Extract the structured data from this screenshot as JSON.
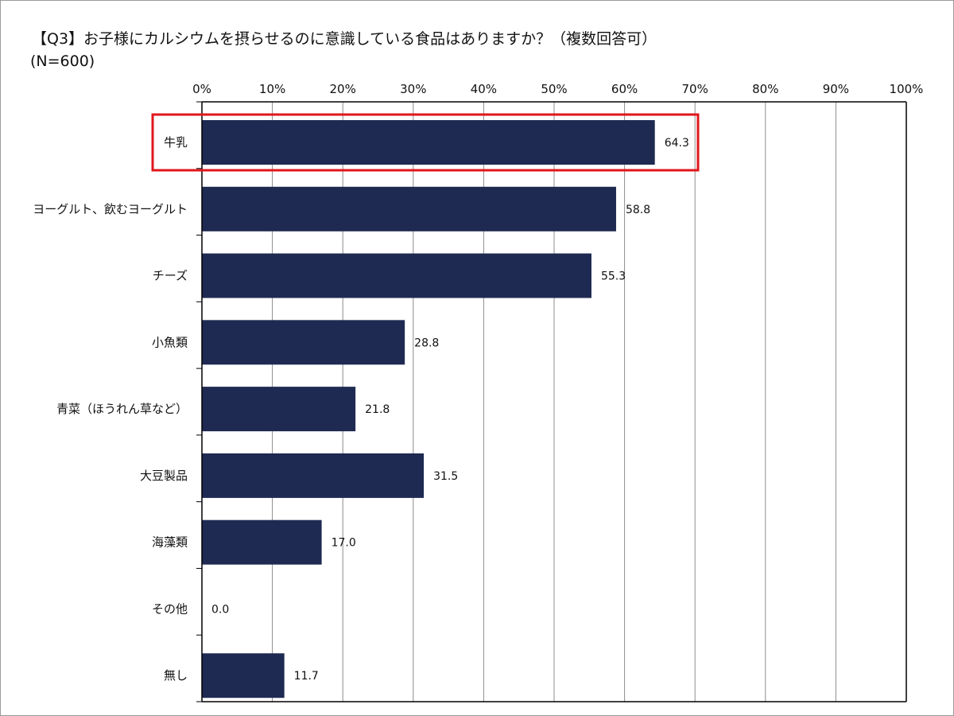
{
  "chart_data": {
    "type": "bar",
    "orientation": "horizontal",
    "title": "【Q3】お子様にカルシウムを摂らせるのに意識している食品はありますか？（複数回答可）",
    "subtitle": "(N=600)",
    "categories": [
      "牛乳",
      "ヨーグルト、飲むヨーグルト",
      "チーズ",
      "小魚類",
      "青菜（ほうれん草など）",
      "大豆製品",
      "海藻類",
      "その他",
      "無し"
    ],
    "values": [
      64.3,
      58.8,
      55.3,
      28.8,
      21.8,
      31.5,
      17.0,
      0.0,
      11.7
    ],
    "value_labels": [
      "64.3",
      "58.8",
      "55.3",
      "28.8",
      "21.8",
      "31.5",
      "17.0",
      "0.0",
      "11.7"
    ],
    "xlim": [
      0,
      100
    ],
    "x_ticks": [
      0,
      10,
      20,
      30,
      40,
      50,
      60,
      70,
      80,
      90,
      100
    ],
    "x_tick_labels": [
      "0%",
      "10%",
      "20%",
      "30%",
      "40%",
      "50%",
      "60%",
      "70%",
      "80%",
      "90%",
      "100%"
    ],
    "x_axis_position": "top",
    "grid": "vertical",
    "legend": "none",
    "highlighted_category": "牛乳",
    "colors": {
      "bar": "#1f2a52",
      "highlight_box": "#e0161b",
      "grid": "#8c8c8c",
      "axis": "#000000"
    }
  }
}
